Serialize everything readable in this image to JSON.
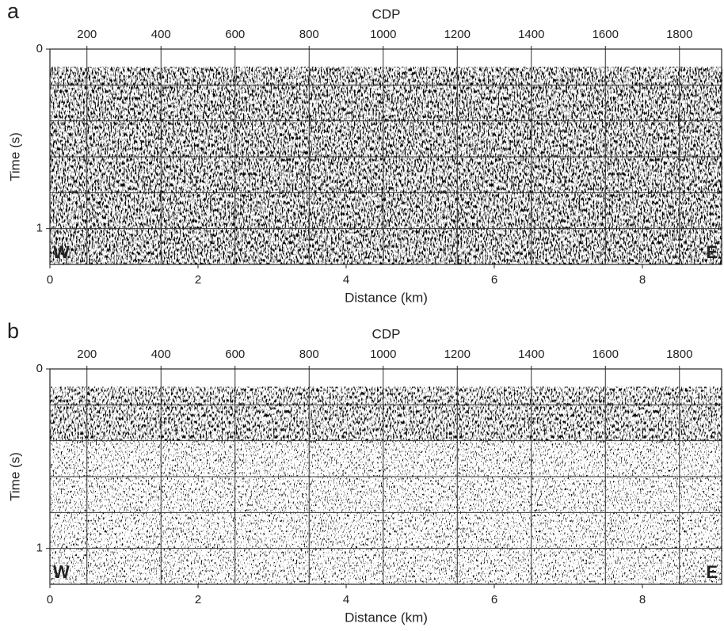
{
  "chart_data": [
    {
      "type": "seismic",
      "panel_label": "a",
      "x2label": "CDP",
      "x2lim": [
        100,
        1916
      ],
      "x2ticks": [
        200,
        400,
        600,
        800,
        1000,
        1200,
        1400,
        1600,
        1800
      ],
      "xlabel": "Distance (km)",
      "xlim": [
        0,
        9.08
      ],
      "xticks": [
        0,
        2,
        4,
        6,
        8
      ],
      "ylabel": "Time (s)",
      "ylim": [
        1.2,
        0
      ],
      "yticks": [
        0,
        1
      ],
      "grid_x": [
        0.5,
        1.5,
        2.5,
        3.5,
        4.5,
        5.5,
        6.5,
        7.5,
        8.5
      ],
      "grid_y": [
        0.2,
        0.4,
        0.6,
        0.8,
        1.0
      ],
      "data_start": 0.1,
      "annotations": [
        "W",
        "E"
      ]
    },
    {
      "type": "seismic",
      "panel_label": "b",
      "x2label": "CDP",
      "x2lim": [
        100,
        1916
      ],
      "x2ticks": [
        200,
        400,
        600,
        800,
        1000,
        1200,
        1400,
        1600,
        1800
      ],
      "xlabel": "Distance (km)",
      "xlim": [
        0,
        9.08
      ],
      "xticks": [
        0,
        2,
        4,
        6,
        8
      ],
      "ylabel": "Time (s)",
      "ylim": [
        1.2,
        0
      ],
      "yticks": [
        0,
        1
      ],
      "grid_x": [
        0.5,
        1.5,
        2.5,
        3.5,
        4.5,
        5.5,
        6.5,
        7.5,
        8.5
      ],
      "grid_y": [
        0.2,
        0.4,
        0.6,
        0.8,
        1.0
      ],
      "data_start": 0.1,
      "attenuated_below": 0.4,
      "annotations": [
        "W",
        "E"
      ]
    }
  ]
}
